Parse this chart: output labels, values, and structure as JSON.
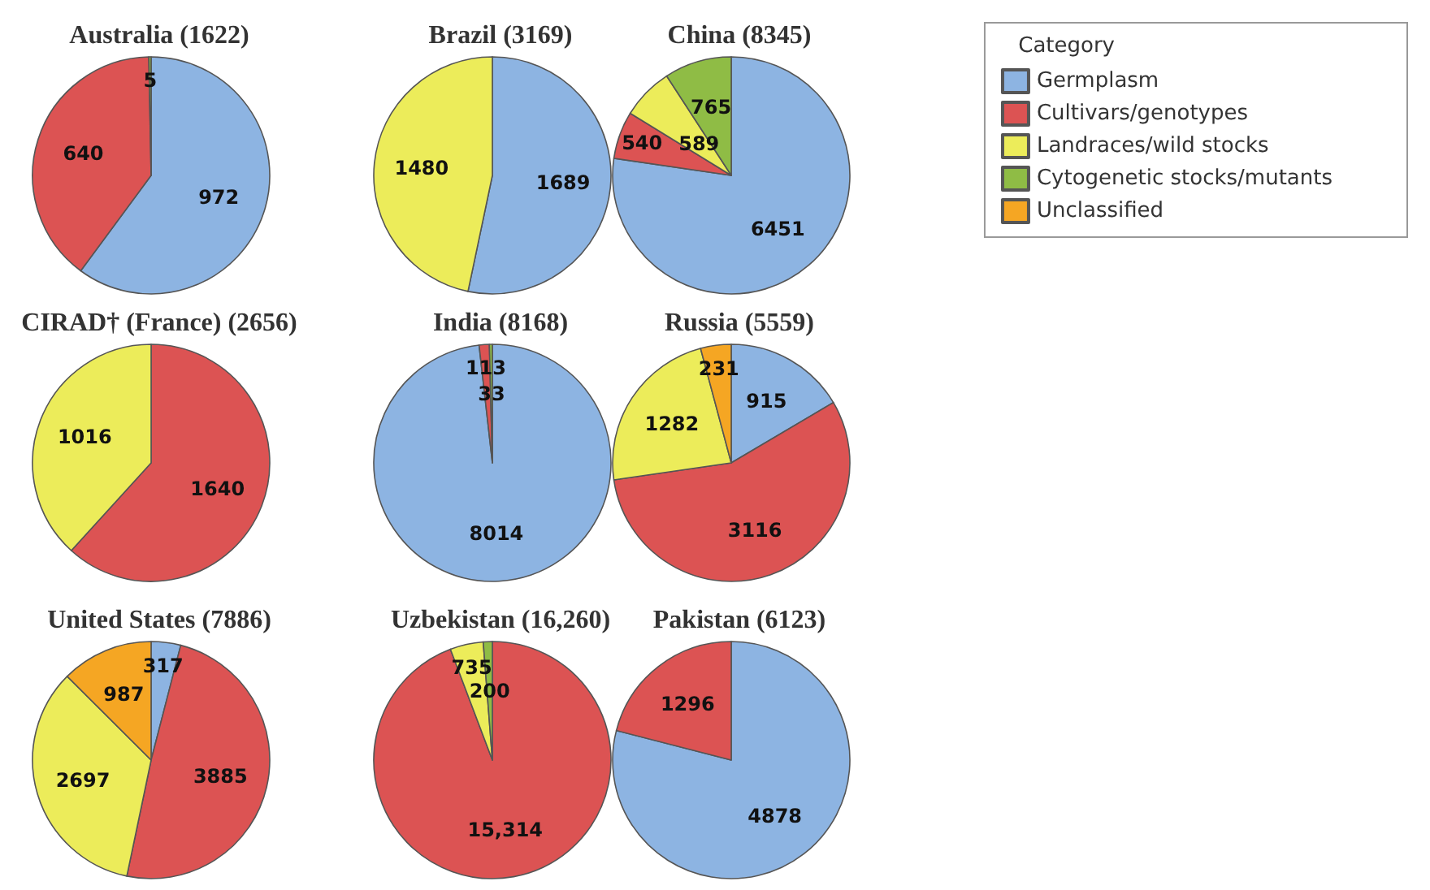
{
  "chart_data": [
    {
      "type": "pie",
      "title": "Australia (1622)",
      "categories": [
        "Germplasm",
        "Cultivars/genotypes",
        "Landraces/wild stocks",
        "Cytogenetic stocks/mutants",
        "Unclassified"
      ],
      "values": [
        972,
        640,
        null,
        5,
        null
      ],
      "colors": [
        "#8db4e2",
        "#dc5353",
        "#ecec5a",
        "#8fbc45",
        "#f5a623"
      ],
      "data_labels": true,
      "legend": "top right",
      "legend_title": "Category"
    },
    {
      "type": "pie",
      "title": "Brazil (3169)",
      "categories": [
        null,
        null
      ],
      "values": [
        1689,
        1480
      ],
      "colors": [
        "#8db4e2",
        "#ecec5a"
      ],
      "data_labels": true
    },
    {
      "type": "pie",
      "title": "China (8345)",
      "categories": [
        null,
        null,
        null,
        null
      ],
      "values": [
        6451,
        540,
        589,
        765
      ],
      "colors": [
        "#8db4e2",
        "#dc5353",
        "#ecec5a",
        "#8fbc45"
      ],
      "data_labels": true
    },
    {
      "type": "pie",
      "title": "CIRAD† (France) (2656)",
      "categories": [
        null,
        null
      ],
      "values": [
        1640,
        1016
      ],
      "colors": [
        "#dc5353",
        "#ecec5a"
      ],
      "data_labels": true
    },
    {
      "type": "pie",
      "title": "India (8168)",
      "categories": [
        null,
        null,
        null
      ],
      "values": [
        8014,
        113,
        33
      ],
      "colors": [
        "#8db4e2",
        "#dc5353",
        "#8fbc45"
      ],
      "data_labels": true
    },
    {
      "type": "pie",
      "title": "Russia (5559)",
      "categories": [
        null,
        null,
        null,
        null
      ],
      "values": [
        915,
        3116,
        1282,
        231
      ],
      "colors": [
        "#8db4e2",
        "#dc5353",
        "#ecec5a",
        "#f5a623"
      ],
      "data_labels": true
    },
    {
      "type": "pie",
      "title": "United States (7886)",
      "categories": [
        null,
        null,
        null,
        null
      ],
      "values": [
        317,
        3885,
        2697,
        987
      ],
      "colors": [
        "#8db4e2",
        "#dc5353",
        "#ecec5a",
        "#f5a623"
      ],
      "data_labels": true
    },
    {
      "type": "pie",
      "title": "Uzbekistan (16,260)",
      "categories": [
        null,
        null,
        null
      ],
      "values": [
        15314,
        735,
        200
      ],
      "colors": [
        "#dc5353",
        "#ecec5a",
        "#8fbc45"
      ],
      "value_labels": [
        "15,314",
        "735",
        "200"
      ]
    },
    {
      "type": "pie",
      "title": "Pakistan (6123)",
      "categories": [
        null,
        null
      ],
      "values": [
        4878,
        1296
      ],
      "colors": [
        "#8db4e2",
        "#dc5353"
      ],
      "data_labels": true
    }
  ]
}
